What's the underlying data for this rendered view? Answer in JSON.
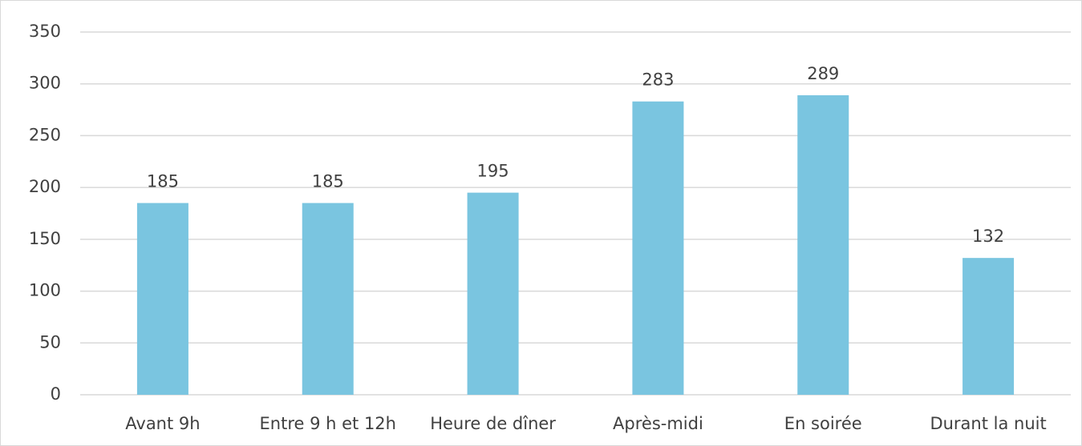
{
  "chart_data": {
    "type": "bar",
    "categories": [
      "Avant 9h",
      "Entre 9 h et 12h",
      "Heure de dîner",
      "Après-midi",
      "En soirée",
      "Durant la nuit"
    ],
    "values": [
      185,
      185,
      195,
      283,
      289,
      132
    ],
    "color": "#7ac5e0",
    "ylim": [
      0,
      350
    ],
    "yticks": [
      0,
      50,
      100,
      150,
      200,
      250,
      300,
      350
    ],
    "grid": true
  }
}
